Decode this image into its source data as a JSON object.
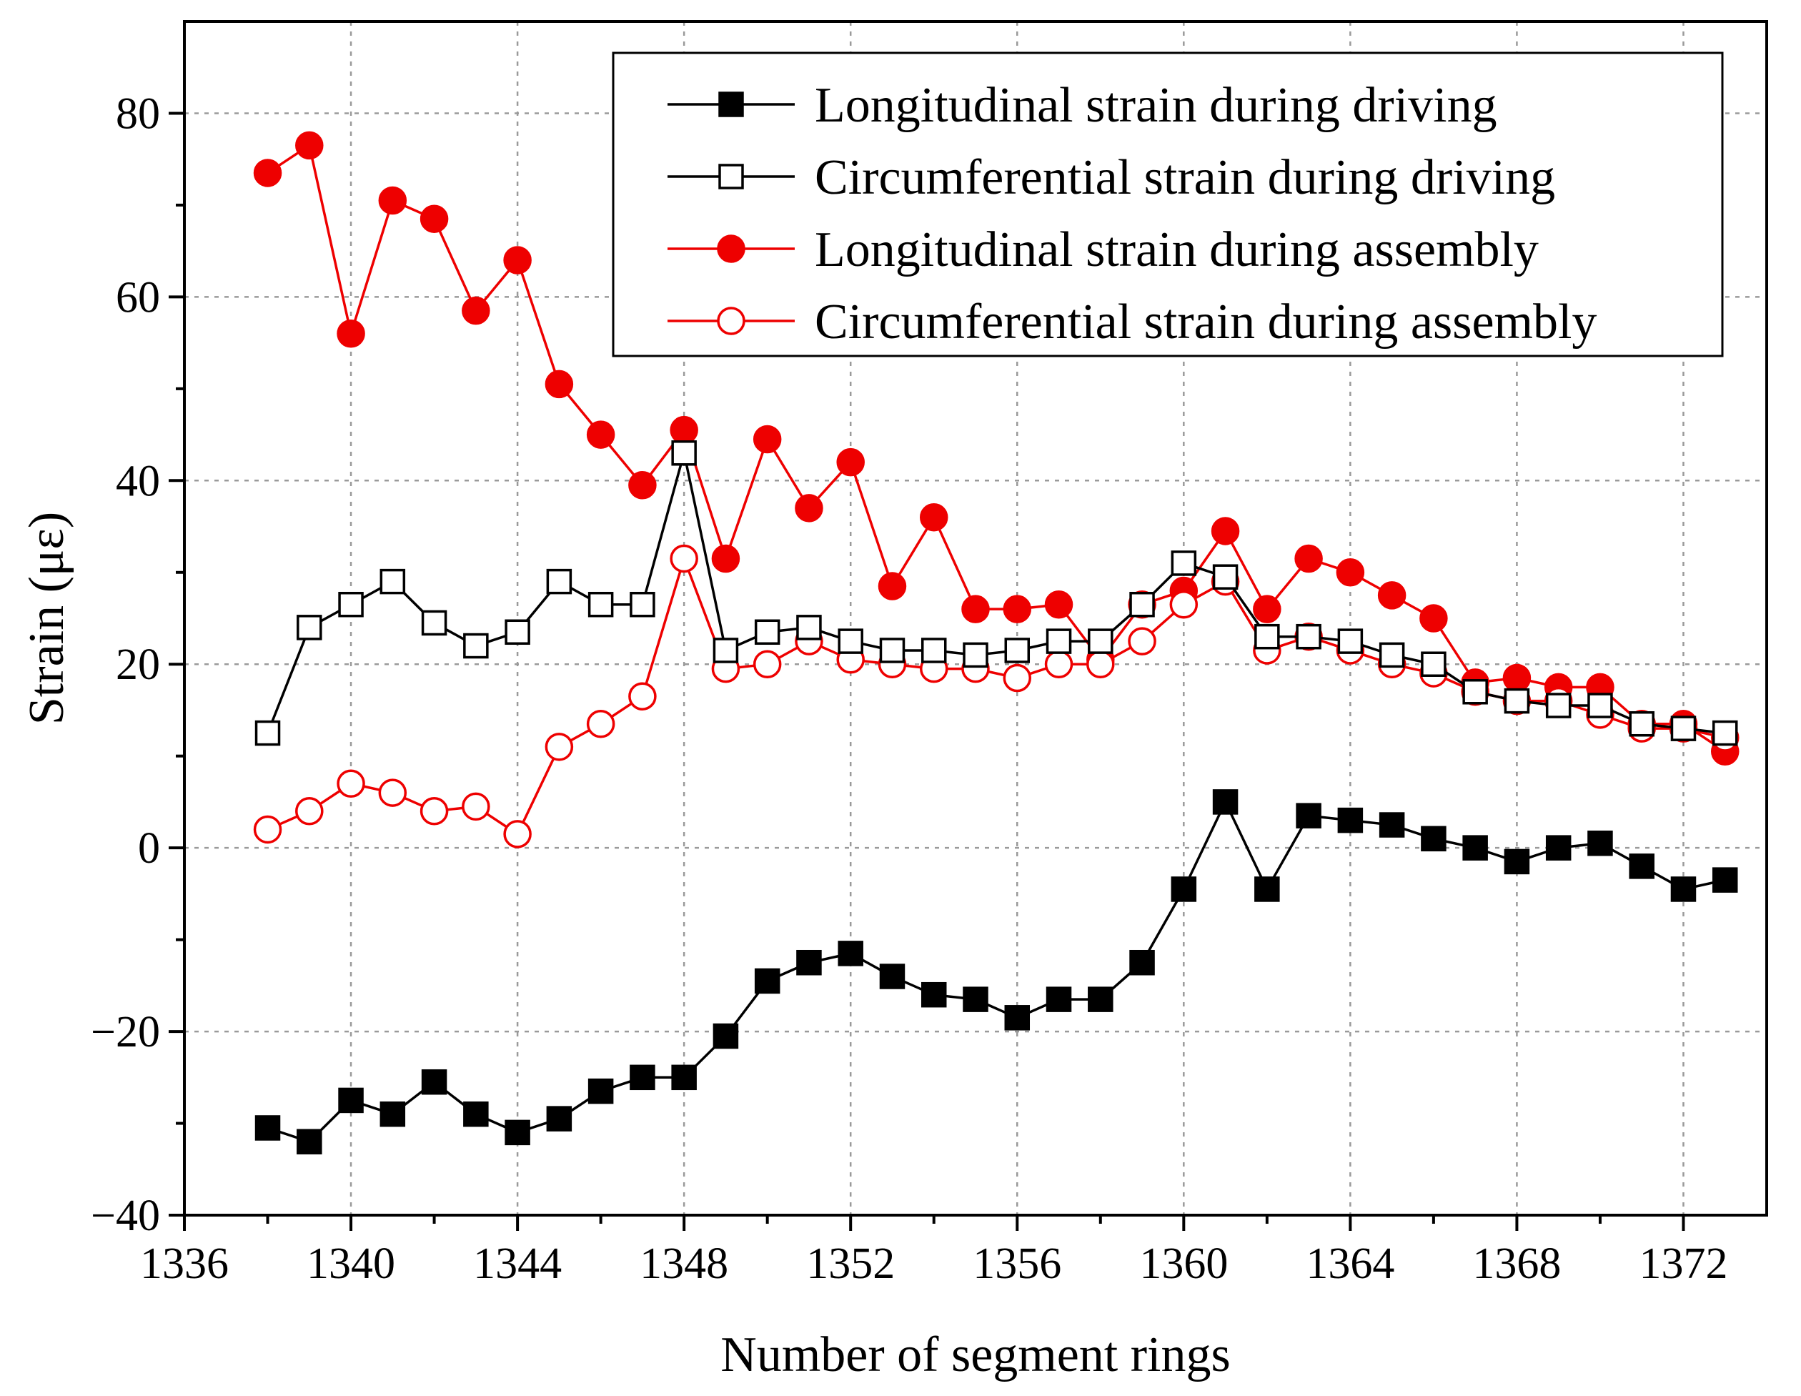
{
  "chart_data": {
    "type": "line",
    "title": "",
    "xlabel": "Number of segment rings",
    "ylabel": "Strain (με)",
    "xlim": [
      1336,
      1374
    ],
    "ylim": [
      -40,
      90
    ],
    "xticks": [
      1336,
      1340,
      1344,
      1348,
      1352,
      1356,
      1360,
      1364,
      1368,
      1372
    ],
    "yticks": [
      -40,
      -20,
      0,
      20,
      40,
      60,
      80
    ],
    "xtick_labels": [
      "1336",
      "1340",
      "1344",
      "1348",
      "1352",
      "1356",
      "1360",
      "1364",
      "1368",
      "1372"
    ],
    "ytick_labels": [
      "−40",
      "−20",
      "0",
      "20",
      "40",
      "60",
      "80"
    ],
    "grid": true,
    "legend_position": "top-right",
    "x": [
      1338,
      1339,
      1340,
      1341,
      1342,
      1343,
      1344,
      1345,
      1346,
      1347,
      1348,
      1349,
      1350,
      1351,
      1352,
      1353,
      1354,
      1355,
      1356,
      1357,
      1358,
      1359,
      1360,
      1361,
      1362,
      1363,
      1364,
      1365,
      1366,
      1367,
      1368,
      1369,
      1370,
      1371,
      1372,
      1373
    ],
    "series": [
      {
        "name": "Longitudinal strain during driving",
        "color": "#000000",
        "marker": "square-filled",
        "values": [
          -30.5,
          -32,
          -27.5,
          -29,
          -25.5,
          -29,
          -31,
          -29.5,
          -26.5,
          -25,
          -25,
          -20.5,
          -14.5,
          -12.5,
          -11.5,
          -14,
          -16,
          -16.5,
          -18.5,
          -16.5,
          -16.5,
          -12.5,
          -4.5,
          5,
          -4.5,
          3.5,
          3,
          2.5,
          1,
          0,
          -1.5,
          0,
          0.5,
          -2,
          -4.5,
          -3.5
        ]
      },
      {
        "name": "Circumferential strain during driving",
        "color": "#000000",
        "marker": "square-open",
        "values": [
          12.5,
          24,
          26.5,
          29,
          24.5,
          22,
          23.5,
          29,
          26.5,
          26.5,
          43,
          21.5,
          23.5,
          24,
          22.5,
          21.5,
          21.5,
          21,
          21.5,
          22.5,
          22.5,
          26.5,
          31,
          29.5,
          23,
          23,
          22.5,
          21,
          20,
          17,
          16,
          15.5,
          15.5,
          13.5,
          13,
          12.5
        ]
      },
      {
        "name": "Longitudinal strain during assembly",
        "color": "#ee0000",
        "marker": "circle-filled",
        "values": [
          73.5,
          76.5,
          56,
          70.5,
          68.5,
          58.5,
          64,
          50.5,
          45,
          39.5,
          45.5,
          31.5,
          44.5,
          37,
          42,
          28.5,
          36,
          26,
          26,
          26.5,
          20.5,
          26.5,
          28,
          34.5,
          26,
          31.5,
          30,
          27.5,
          25,
          18,
          18.5,
          17.5,
          17.5,
          13.5,
          13.5,
          10.5
        ]
      },
      {
        "name": "Circumferential strain during assembly",
        "color": "#ee0000",
        "marker": "circle-open",
        "values": [
          2,
          4,
          7,
          6,
          4,
          4.5,
          1.5,
          11,
          13.5,
          16.5,
          31.5,
          19.5,
          20,
          22.5,
          20.5,
          20,
          19.5,
          19.5,
          18.5,
          20,
          20,
          22.5,
          26.5,
          29,
          21.5,
          23,
          21.5,
          20,
          19,
          17,
          16,
          16,
          14.5,
          13,
          13,
          12
        ]
      }
    ]
  }
}
